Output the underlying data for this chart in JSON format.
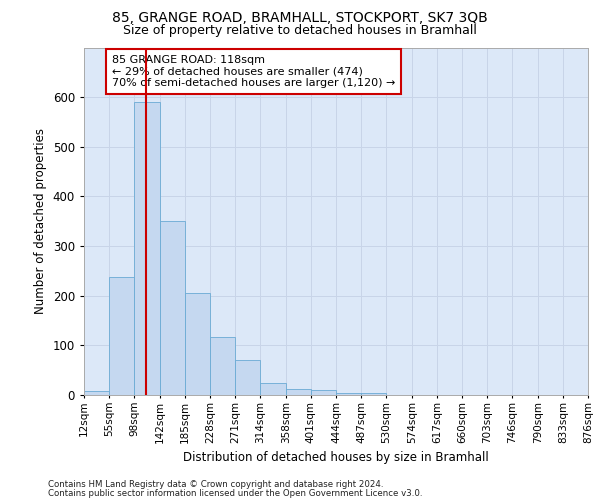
{
  "title1": "85, GRANGE ROAD, BRAMHALL, STOCKPORT, SK7 3QB",
  "title2": "Size of property relative to detached houses in Bramhall",
  "xlabel": "Distribution of detached houses by size in Bramhall",
  "ylabel": "Number of detached properties",
  "bin_labels": [
    "12sqm",
    "55sqm",
    "98sqm",
    "142sqm",
    "185sqm",
    "228sqm",
    "271sqm",
    "314sqm",
    "358sqm",
    "401sqm",
    "444sqm",
    "487sqm",
    "530sqm",
    "574sqm",
    "617sqm",
    "660sqm",
    "703sqm",
    "746sqm",
    "790sqm",
    "833sqm",
    "876sqm"
  ],
  "bin_edges": [
    12,
    55,
    98,
    142,
    185,
    228,
    271,
    314,
    358,
    401,
    444,
    487,
    530,
    574,
    617,
    660,
    703,
    746,
    790,
    833,
    876
  ],
  "bar_heights": [
    8,
    237,
    590,
    350,
    205,
    117,
    70,
    25,
    13,
    10,
    5,
    5,
    0,
    0,
    0,
    0,
    0,
    0,
    0,
    0
  ],
  "bar_color": "#c5d8f0",
  "bar_edge_color": "#6aaad4",
  "vline_x": 118,
  "vline_color": "#cc0000",
  "annotation_text": "85 GRANGE ROAD: 118sqm\n← 29% of detached houses are smaller (474)\n70% of semi-detached houses are larger (1,120) →",
  "annotation_box_color": "#ffffff",
  "annotation_box_edge": "#cc0000",
  "ylim": [
    0,
    700
  ],
  "yticks": [
    0,
    100,
    200,
    300,
    400,
    500,
    600,
    700
  ],
  "grid_color": "#c8d4e8",
  "bg_color": "#dce8f8",
  "footer1": "Contains HM Land Registry data © Crown copyright and database right 2024.",
  "footer2": "Contains public sector information licensed under the Open Government Licence v3.0."
}
